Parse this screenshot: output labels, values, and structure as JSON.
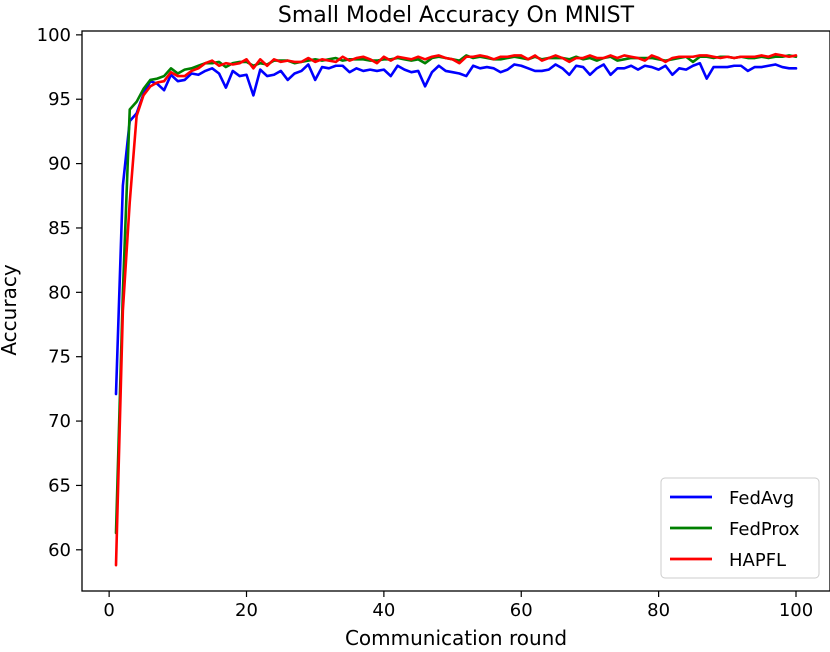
{
  "chart_data": {
    "type": "line",
    "title": "Small Model Accuracy On MNIST",
    "xlabel": "Communication round",
    "ylabel": "Accuracy",
    "xlim": [
      -3.95,
      104.95
    ],
    "ylim": [
      56.8,
      100.3
    ],
    "xticks": [
      0,
      20,
      40,
      60,
      80,
      100
    ],
    "yticks": [
      60,
      65,
      70,
      75,
      80,
      85,
      90,
      95,
      100
    ],
    "grid": false,
    "legend_position": "bottom-right",
    "x": [
      1,
      2,
      3,
      4,
      5,
      6,
      7,
      8,
      9,
      10,
      11,
      12,
      13,
      14,
      15,
      16,
      17,
      18,
      19,
      20,
      21,
      22,
      23,
      24,
      25,
      26,
      27,
      28,
      29,
      30,
      31,
      32,
      33,
      34,
      35,
      36,
      37,
      38,
      39,
      40,
      41,
      42,
      43,
      44,
      45,
      46,
      47,
      48,
      49,
      50,
      51,
      52,
      53,
      54,
      55,
      56,
      57,
      58,
      59,
      60,
      61,
      62,
      63,
      64,
      65,
      66,
      67,
      68,
      69,
      70,
      71,
      72,
      73,
      74,
      75,
      76,
      77,
      78,
      79,
      80,
      81,
      82,
      83,
      84,
      85,
      86,
      87,
      88,
      89,
      90,
      91,
      92,
      93,
      94,
      95,
      96,
      97,
      98,
      99,
      100
    ],
    "series": [
      {
        "name": "FedAvg",
        "color": "#0000ff",
        "values": [
          72.1,
          88.3,
          93.3,
          93.9,
          95.4,
          96.4,
          96.2,
          95.7,
          96.9,
          96.4,
          96.5,
          97.0,
          96.9,
          97.2,
          97.4,
          97.0,
          95.9,
          97.2,
          96.8,
          96.9,
          95.3,
          97.3,
          96.8,
          96.9,
          97.2,
          96.5,
          97.0,
          97.2,
          97.7,
          96.5,
          97.5,
          97.4,
          97.6,
          97.6,
          97.1,
          97.4,
          97.2,
          97.3,
          97.2,
          97.3,
          96.8,
          97.6,
          97.3,
          97.1,
          97.2,
          96.0,
          97.1,
          97.6,
          97.2,
          97.1,
          97.0,
          96.8,
          97.6,
          97.4,
          97.5,
          97.4,
          97.1,
          97.3,
          97.7,
          97.6,
          97.4,
          97.2,
          97.2,
          97.3,
          97.7,
          97.4,
          96.9,
          97.6,
          97.5,
          96.9,
          97.4,
          97.7,
          96.9,
          97.4,
          97.4,
          97.6,
          97.3,
          97.6,
          97.5,
          97.3,
          97.6,
          96.9,
          97.4,
          97.3,
          97.6,
          97.8,
          96.6,
          97.5,
          97.5,
          97.5,
          97.6,
          97.6,
          97.2,
          97.5,
          97.5,
          97.6,
          97.7,
          97.5,
          97.4,
          97.4
        ]
      },
      {
        "name": "FedProx",
        "color": "#008000",
        "values": [
          61.3,
          80.0,
          94.2,
          94.8,
          95.8,
          96.5,
          96.6,
          96.8,
          97.4,
          97.0,
          97.3,
          97.4,
          97.6,
          97.8,
          97.8,
          97.9,
          97.5,
          97.8,
          97.9,
          97.9,
          97.6,
          97.8,
          97.7,
          98.0,
          98.0,
          98.0,
          97.8,
          97.9,
          98.0,
          98.1,
          98.0,
          98.1,
          98.2,
          98.0,
          98.1,
          98.1,
          98.1,
          98.0,
          98.0,
          98.1,
          98.1,
          98.2,
          98.1,
          98.0,
          98.1,
          97.8,
          98.2,
          98.3,
          98.2,
          98.1,
          98.0,
          98.4,
          98.2,
          98.3,
          98.2,
          98.1,
          98.1,
          98.2,
          98.3,
          98.2,
          98.1,
          98.3,
          98.1,
          98.2,
          98.2,
          98.2,
          98.1,
          98.3,
          98.1,
          98.2,
          98.0,
          98.2,
          98.3,
          98.0,
          98.1,
          98.2,
          98.2,
          98.2,
          98.2,
          98.1,
          98.0,
          98.1,
          98.2,
          98.3,
          97.9,
          98.3,
          98.3,
          98.2,
          98.3,
          98.3,
          98.2,
          98.3,
          98.2,
          98.2,
          98.3,
          98.2,
          98.3,
          98.3,
          98.4,
          98.3
        ]
      },
      {
        "name": "HAPFL",
        "color": "#ff0000",
        "values": [
          58.8,
          78.6,
          87.0,
          93.7,
          95.3,
          96.0,
          96.3,
          96.4,
          97.1,
          96.8,
          96.8,
          97.2,
          97.4,
          97.8,
          98.0,
          97.6,
          97.8,
          97.7,
          97.8,
          98.1,
          97.4,
          98.1,
          97.6,
          98.1,
          97.9,
          98.0,
          97.9,
          97.9,
          98.2,
          97.9,
          98.1,
          98.0,
          97.9,
          98.3,
          98.0,
          98.2,
          98.3,
          98.1,
          97.8,
          98.3,
          98.0,
          98.3,
          98.2,
          98.1,
          98.3,
          98.1,
          98.3,
          98.4,
          98.2,
          98.1,
          97.8,
          98.3,
          98.3,
          98.4,
          98.3,
          98.1,
          98.3,
          98.3,
          98.4,
          98.4,
          98.1,
          98.4,
          98.0,
          98.2,
          98.4,
          98.2,
          97.9,
          98.2,
          98.2,
          98.4,
          98.2,
          98.2,
          98.4,
          98.2,
          98.4,
          98.3,
          98.2,
          98.0,
          98.4,
          98.2,
          97.9,
          98.2,
          98.3,
          98.3,
          98.3,
          98.4,
          98.4,
          98.3,
          98.2,
          98.3,
          98.2,
          98.3,
          98.3,
          98.3,
          98.4,
          98.3,
          98.5,
          98.4,
          98.3,
          98.4
        ]
      }
    ]
  }
}
